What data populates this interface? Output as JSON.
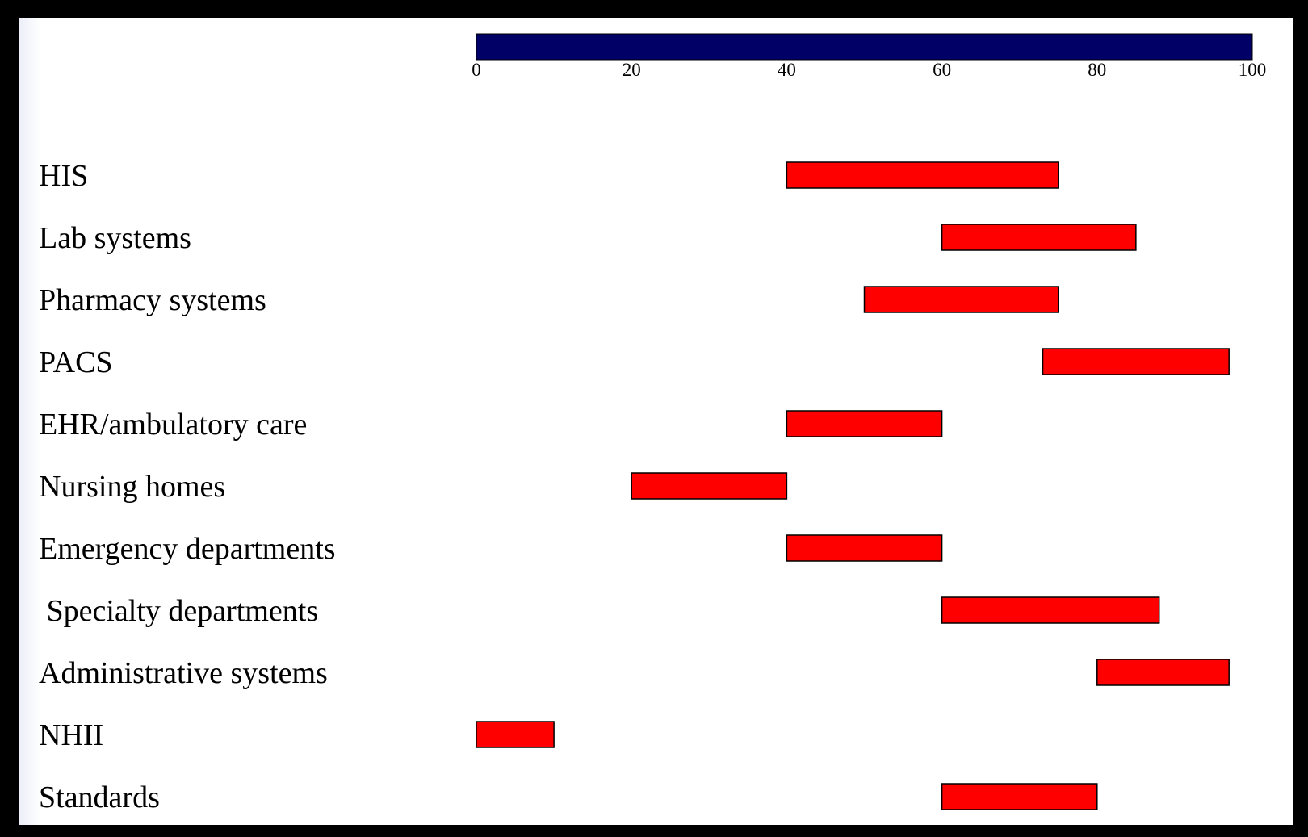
{
  "chart_data": {
    "type": "bar",
    "orientation": "horizontal",
    "bar_style": "range",
    "title": "",
    "xlabel": "",
    "ylabel": "",
    "xlim": [
      0,
      100
    ],
    "x_ticks": [
      0,
      20,
      40,
      60,
      80,
      100
    ],
    "x_tick_labels": [
      "0",
      "20",
      "40",
      "60",
      "80",
      "100"
    ],
    "axis_position": "top",
    "grid": false,
    "legend": "none",
    "categories": [
      "HIS",
      "Lab systems",
      "Pharmacy systems",
      "PACS",
      "EHR/ambulatory care",
      "Nursing homes",
      "Emergency departments",
      " Specialty departments",
      "Administrative systems",
      "NHII",
      "Standards"
    ],
    "ranges": [
      [
        40,
        75
      ],
      [
        60,
        85
      ],
      [
        50,
        75
      ],
      [
        73,
        97
      ],
      [
        40,
        60
      ],
      [
        20,
        40
      ],
      [
        40,
        60
      ],
      [
        60,
        88
      ],
      [
        80,
        97
      ],
      [
        0,
        10
      ],
      [
        60,
        80
      ]
    ],
    "colors": {
      "axis_bar": "#000066",
      "range_bar": "#ff0000",
      "bar_outline": "#000000"
    }
  }
}
